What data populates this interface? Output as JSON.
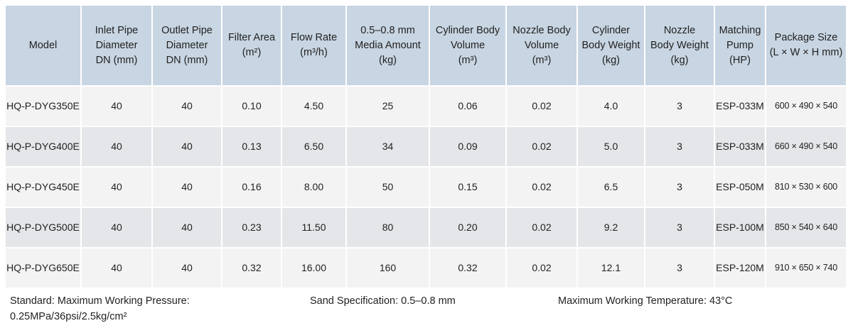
{
  "table": {
    "headers": [
      [
        "Model"
      ],
      [
        "Inlet Pipe",
        "Diameter",
        "DN (mm)"
      ],
      [
        "Outlet Pipe",
        "Diameter",
        "DN (mm)"
      ],
      [
        "Filter Area",
        "(m²)"
      ],
      [
        "Flow Rate",
        "(m³/h)"
      ],
      [
        "0.5–0.8 mm",
        "Media Amount",
        "(kg)"
      ],
      [
        "Cylinder Body",
        "Volume",
        "(m³)"
      ],
      [
        "Nozzle Body",
        "Volume",
        "(m³)"
      ],
      [
        "Cylinder",
        "Body Weight",
        "(kg)"
      ],
      [
        "Nozzle",
        "Body Weight",
        "(kg)"
      ],
      [
        "Matching",
        "Pump",
        "(HP)"
      ],
      [
        "Package Size",
        "(L × W × H mm)"
      ]
    ],
    "rows": [
      [
        "HQ-P-DYG350E",
        "40",
        "40",
        "0.10",
        "4.50",
        "25",
        "0.06",
        "0.02",
        "4.0",
        "3",
        "ESP-033M",
        "600 × 490 × 540"
      ],
      [
        "HQ-P-DYG400E",
        "40",
        "40",
        "0.13",
        "6.50",
        "34",
        "0.09",
        "0.02",
        "5.0",
        "3",
        "ESP-033M",
        "660 × 490 × 540"
      ],
      [
        "HQ-P-DYG450E",
        "40",
        "40",
        "0.16",
        "8.00",
        "50",
        "0.15",
        "0.02",
        "6.5",
        "3",
        "ESP-050M",
        "810 × 530 × 600"
      ],
      [
        "HQ-P-DYG500E",
        "40",
        "40",
        "0.23",
        "11.50",
        "80",
        "0.20",
        "0.02",
        "9.2",
        "3",
        "ESP-100M",
        "850 × 540 × 640"
      ],
      [
        "HQ-P-DYG650E",
        "40",
        "40",
        "0.32",
        "16.00",
        "160",
        "0.32",
        "0.02",
        "12.1",
        "3",
        "ESP-120M",
        "910 × 650 × 740"
      ]
    ]
  },
  "notes": [
    [
      "Standard: Maximum Working Pressure:",
      "0.25MPa/36psi/2.5kg/cm²"
    ],
    [
      "Sand Specification: 0.5–0.8 mm"
    ],
    [
      "Maximum Working Temperature: 43°C"
    ]
  ]
}
